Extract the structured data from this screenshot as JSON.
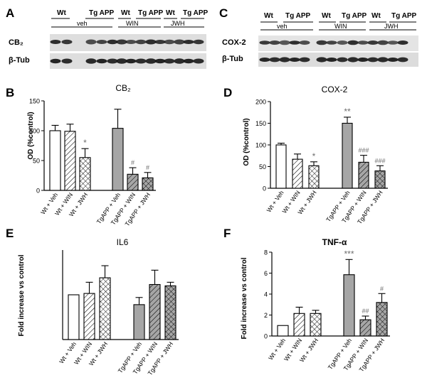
{
  "panels": {
    "A": "A",
    "B": "B",
    "C": "C",
    "D": "D",
    "E": "E",
    "F": "F"
  },
  "blot_A": {
    "top_labels": [
      "Wt",
      "Tg APP",
      "Wt",
      "Tg APP",
      "Wt",
      "Tg APP"
    ],
    "group_labels": [
      "veh",
      "WIN",
      "JWH"
    ],
    "rows": [
      "CB₂",
      "β-Tub"
    ]
  },
  "blot_C": {
    "top_labels": [
      "Wt",
      "Tg APP",
      "Wt",
      "Tg APP",
      "Wt",
      "Tg APP"
    ],
    "group_labels": [
      "veh",
      "WIN",
      "JWH"
    ],
    "rows": [
      "COX-2",
      "β-Tub"
    ]
  },
  "categories": [
    "Wt + Veh",
    "Wt + WIN",
    "Wt + JWH",
    "TgAPP + Veh",
    "TgAPP + WIN",
    "TgAPP + JWH"
  ],
  "chart_data": [
    {
      "id": "B",
      "type": "bar",
      "title": "CB₂",
      "ylabel": "OD (%control)",
      "ylim": [
        0,
        150
      ],
      "yticks": [
        0,
        50,
        100,
        150
      ],
      "categories": [
        "Wt + Veh",
        "Wt + WIN",
        "Wt + JWH",
        "TgAPP + Veh",
        "TgAPP + WIN",
        "TgAPP + JWH"
      ],
      "values": [
        100,
        99,
        55,
        104,
        27,
        21
      ],
      "errors": [
        9,
        12,
        15,
        32,
        11,
        9
      ],
      "annotations": [
        "",
        "",
        "*",
        "",
        "#",
        "#"
      ]
    },
    {
      "id": "D",
      "type": "bar",
      "title": "COX-2",
      "ylabel": "OD (%control)",
      "ylim": [
        0,
        200
      ],
      "yticks": [
        0,
        50,
        100,
        150,
        200
      ],
      "categories": [
        "Wt + Veh",
        "Wt + WIN",
        "Wt + JWH",
        "TgAPP + Veh",
        "TgAPP + WIN",
        "TgAPP + JWH"
      ],
      "values": [
        100,
        67,
        52,
        150,
        60,
        40
      ],
      "errors": [
        4,
        12,
        9,
        14,
        16,
        12
      ],
      "annotations": [
        "",
        "",
        "*",
        "**",
        "###",
        "###"
      ]
    },
    {
      "id": "E",
      "type": "bar",
      "title": "IL6",
      "ylabel": "Fold increase vs control",
      "ylim": [
        0,
        2.0
      ],
      "yticks": [],
      "categories": [
        "Wt + Veh",
        "Wt + WIN",
        "Wt + JWH",
        "TgAPP + Veh",
        "TgAPP + WIN",
        "TgAPP + JWH"
      ],
      "values": [
        1.0,
        1.03,
        1.38,
        0.78,
        1.23,
        1.2
      ],
      "errors": [
        0,
        0.25,
        0.27,
        0.16,
        0.32,
        0.08
      ],
      "annotations": [
        "",
        "",
        "",
        "",
        "",
        ""
      ]
    },
    {
      "id": "F",
      "type": "bar",
      "title": "TNF-α",
      "ylabel": "Fold increase vs control",
      "ylim": [
        0,
        8
      ],
      "yticks": [
        0,
        2,
        4,
        6,
        8
      ],
      "categories": [
        "Wt + Veh",
        "Wt + WIN",
        "Wt + JWH",
        "TgAPP + Veh",
        "TgAPP + WIN",
        "TgAPP + JWH"
      ],
      "values": [
        1.0,
        2.15,
        2.15,
        5.85,
        1.55,
        3.2
      ],
      "errors": [
        0,
        0.6,
        0.3,
        1.45,
        0.35,
        0.85
      ],
      "annotations": [
        "",
        "",
        "",
        "***",
        "##",
        "#"
      ]
    }
  ],
  "colors": {
    "wt_fill": "#ffffff",
    "tg_fill": "#a6a6a6",
    "annotation": "#6e6e6e",
    "blot_bg": "#dedede",
    "band": "#1a1a1a"
  }
}
